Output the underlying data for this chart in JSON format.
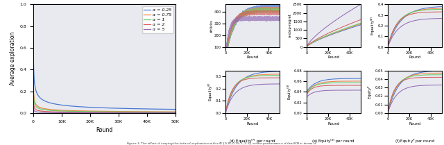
{
  "alphas": [
    0.25,
    0.75,
    1,
    2,
    5
  ],
  "colors": [
    "#4878d0",
    "#ee854a",
    "#6acc65",
    "#d65f5f",
    "#956cb4"
  ],
  "n_rounds": 50000,
  "background_color": "#e8eaf0",
  "ylabel_main": "Average exploration",
  "legend_labels": [
    "α = 0.25",
    "α = 0.75",
    "α = 1",
    "α = 2",
    "α = 5"
  ],
  "clicks_ylim": [
    100,
    460
  ],
  "regret_ylim": [
    0,
    2500
  ],
  "eqB_ylim": [
    0.0,
    0.4
  ],
  "eqP_ylim": [
    0.0,
    0.35
  ],
  "exB_ylim": [
    0.0,
    0.08
  ],
  "exP_ylim": [
    0.0,
    0.05
  ]
}
